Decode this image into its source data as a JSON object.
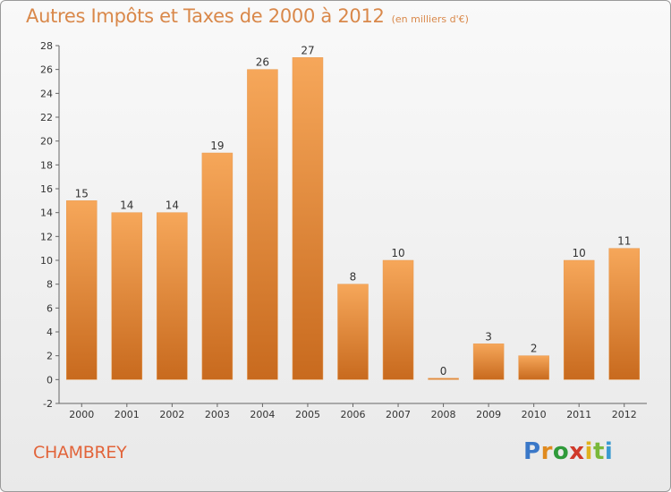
{
  "title": "Autres Impôts et Taxes de 2000 à 2012",
  "subtitle": "(en milliers d'€)",
  "commune": "CHAMBREY",
  "logo": {
    "letters": [
      "P",
      "r",
      "o",
      "x",
      "i",
      "t",
      "i"
    ],
    "colors": [
      "#3a78c8",
      "#e08a1e",
      "#2f9a3a",
      "#d03a2a",
      "#e0b21e",
      "#7ab83a",
      "#3a9ad0"
    ]
  },
  "colors": {
    "bar_top": "#f6a75a",
    "bar_bottom": "#c86a1e",
    "title": "#d9884a",
    "commune": "#e2643a"
  },
  "chart_data": {
    "type": "bar",
    "title": "Autres Impôts et Taxes de 2000 à 2012",
    "subtitle": "(en milliers d'€)",
    "categories": [
      "2000",
      "2001",
      "2002",
      "2003",
      "2004",
      "2005",
      "2006",
      "2007",
      "2008",
      "2009",
      "2010",
      "2011",
      "2012"
    ],
    "values": [
      15,
      14,
      14,
      19,
      26,
      27,
      8,
      10,
      0,
      3,
      2,
      10,
      11
    ],
    "yticks": [
      -2,
      0,
      2,
      4,
      6,
      8,
      10,
      12,
      14,
      16,
      18,
      20,
      22,
      24,
      26,
      28
    ],
    "ylim": [
      -2,
      28
    ],
    "grid": false,
    "legend": "none"
  }
}
